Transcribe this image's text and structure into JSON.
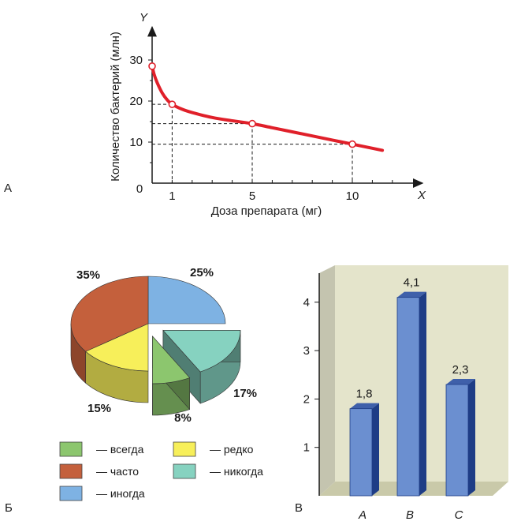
{
  "colors": {
    "line": "#e0202a",
    "pie": {
      "always": "#8cc66e",
      "often": "#c4603c",
      "sometimes": "#7eb2e3",
      "rarely": "#f7ef5a",
      "never": "#86d2c0"
    },
    "bar_front": "#6b8fd0",
    "bar_side": "#1e3d86",
    "bar_top": "#3f60aa",
    "wall": "#e4e4cb",
    "floor": "#c9c9a9"
  },
  "chart_data": [
    {
      "panel_label": "А",
      "type": "line",
      "x_axis_letter": "X",
      "y_axis_letter": "Y",
      "xlabel": "Доза препарата (мг)",
      "ylabel": "Количество бактерий (млн)",
      "origin_label": "0",
      "xticks": [
        1,
        5,
        10
      ],
      "yticks": [
        10,
        20,
        30
      ],
      "xlim": [
        -1,
        13.5
      ],
      "ylim": [
        0,
        38
      ],
      "grid": false,
      "series": [
        {
          "x": [
            0,
            0.1,
            0.25,
            0.5,
            0.75,
            1,
            1.5,
            2,
            3,
            4,
            5,
            6,
            7,
            8,
            9,
            10,
            11,
            11.5
          ],
          "y": [
            28.5,
            26.5,
            24.5,
            22,
            20.3,
            19.2,
            18,
            17.2,
            16,
            15.2,
            14.5,
            13.5,
            12.5,
            11.5,
            10.5,
            9.5,
            8.5,
            8
          ]
        }
      ],
      "markers": [
        {
          "x": 0,
          "y": 28.5
        },
        {
          "x": 1,
          "y": 19.2
        },
        {
          "x": 5,
          "y": 14.5
        },
        {
          "x": 10,
          "y": 9.5
        }
      ]
    },
    {
      "panel_label": "Б",
      "type": "pie",
      "slices": [
        {
          "key": "sometimes",
          "label": "— иногда",
          "pct": 25,
          "pct_text": "25%"
        },
        {
          "key": "never",
          "label": "— никогда",
          "pct": 17,
          "pct_text": "17%"
        },
        {
          "key": "always",
          "label": "— всегда",
          "pct": 8,
          "pct_text": "8%"
        },
        {
          "key": "rarely",
          "label": "— редко",
          "pct": 15,
          "pct_text": "15%"
        },
        {
          "key": "often",
          "label": "— часто",
          "pct": 35,
          "pct_text": "35%"
        }
      ],
      "legend_order": [
        "always",
        "rarely",
        "often",
        "never",
        "sometimes"
      ],
      "exploded": [
        "always",
        "never"
      ]
    },
    {
      "panel_label": "В",
      "type": "bar",
      "categories": [
        "A",
        "B",
        "C"
      ],
      "values": [
        1.8,
        4.1,
        2.3
      ],
      "value_labels": [
        "1,8",
        "4,1",
        "2,3"
      ],
      "yticks": [
        1,
        2,
        3,
        4
      ],
      "ylim": [
        0,
        4.6
      ],
      "grid": false
    }
  ]
}
